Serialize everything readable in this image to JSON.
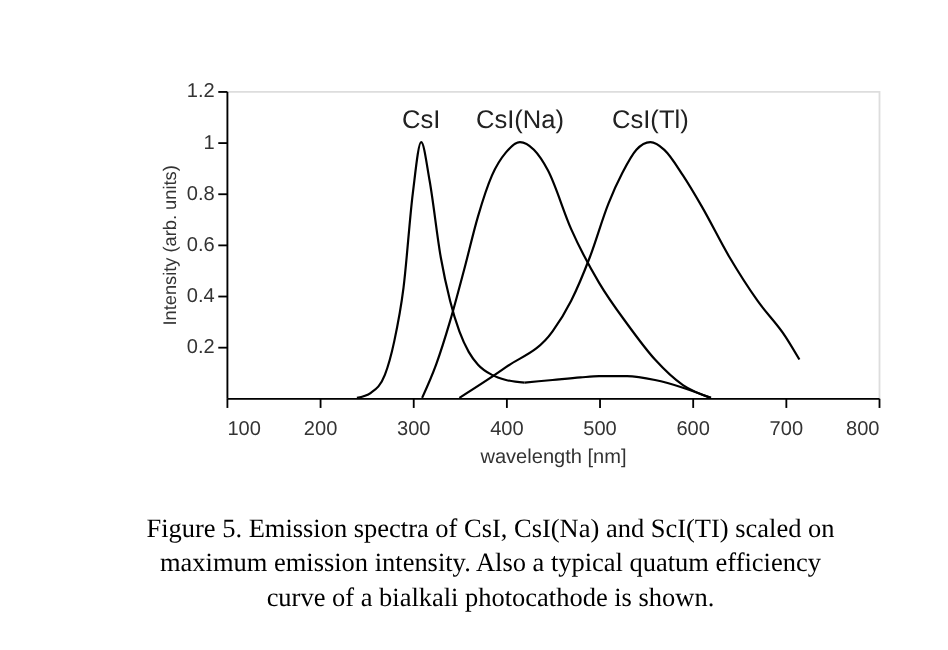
{
  "chart_data": {
    "type": "line",
    "xlabel": "wavelength [nm]",
    "ylabel": "Intensity (arb. units)",
    "xlim": [
      100,
      800
    ],
    "xticks": [
      100,
      200,
      300,
      400,
      500,
      600,
      700,
      800
    ],
    "ylim": [
      0,
      1.2
    ],
    "yticks": [
      0.2,
      0.4,
      0.6,
      0.8,
      {
        "value": 1,
        "label": "1"
      },
      1.2
    ],
    "grid": false,
    "marker": "none",
    "line_style": "solid",
    "series": [
      {
        "name": "CsI",
        "color": "#000000",
        "x": [
          240,
          255,
          270,
          280,
          290,
          300,
          309,
          318,
          330,
          340,
          350,
          360,
          370,
          385,
          400,
          420
        ],
        "values": [
          0,
          0.02,
          0.09,
          0.22,
          0.43,
          0.8,
          1.0,
          0.85,
          0.55,
          0.38,
          0.26,
          0.18,
          0.13,
          0.09,
          0.07,
          0.06
        ]
      },
      {
        "color": "#000000",
        "x": [
          420,
          450,
          480,
          500,
          530,
          560,
          590,
          620
        ],
        "values": [
          0.06,
          0.07,
          0.08,
          0.085,
          0.085,
          0.07,
          0.04,
          0
        ]
      },
      {
        "name": "CsI(Na)",
        "color": "#000000",
        "x": [
          310,
          325,
          340,
          355,
          370,
          385,
          400,
          415,
          430,
          445,
          470,
          500,
          530,
          560,
          590,
          620
        ],
        "values": [
          0,
          0.13,
          0.3,
          0.5,
          0.71,
          0.87,
          0.96,
          1.0,
          0.97,
          0.89,
          0.66,
          0.45,
          0.29,
          0.15,
          0.05,
          0
        ]
      },
      {
        "name": "CsI(Tl)",
        "color": "#000000",
        "x": [
          350,
          400,
          450,
          470,
          490,
          510,
          525,
          540,
          555,
          570,
          590,
          610,
          640,
          670,
          700,
          715
        ],
        "values": [
          0,
          0.12,
          0.26,
          0.38,
          0.55,
          0.76,
          0.88,
          0.97,
          1.0,
          0.97,
          0.87,
          0.75,
          0.55,
          0.38,
          0.24,
          0.15
        ]
      }
    ],
    "annotations": [
      "Figure 5. Emission spectra of CsI, CsI(Na) and ScI(TI) scaled on\nmaximum emission intensity. Also a typical quatum efficiency\ncurve of a bialkali photocathode is shown."
    ]
  }
}
